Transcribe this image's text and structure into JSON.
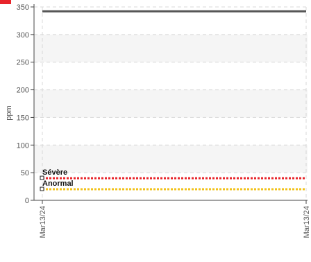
{
  "chart_data": {
    "type": "line",
    "title": "",
    "xlabel": "",
    "ylabel": "ppm",
    "ylim": [
      0,
      350
    ],
    "yticks": [
      0,
      50,
      100,
      150,
      200,
      250,
      300,
      350
    ],
    "x_tick_labels": [
      "Mar13/24",
      "Mar13/24"
    ],
    "grid": true,
    "banded_background": true,
    "series": [
      {
        "values": [
          342,
          342
        ],
        "color": "#555555"
      }
    ],
    "thresholds": [
      {
        "label": "Sévère",
        "value": 40,
        "color": "#e8242b"
      },
      {
        "label": "Anormal",
        "value": 20,
        "color": "#f2c21a"
      }
    ],
    "header_marker_color": "#e8242b"
  }
}
